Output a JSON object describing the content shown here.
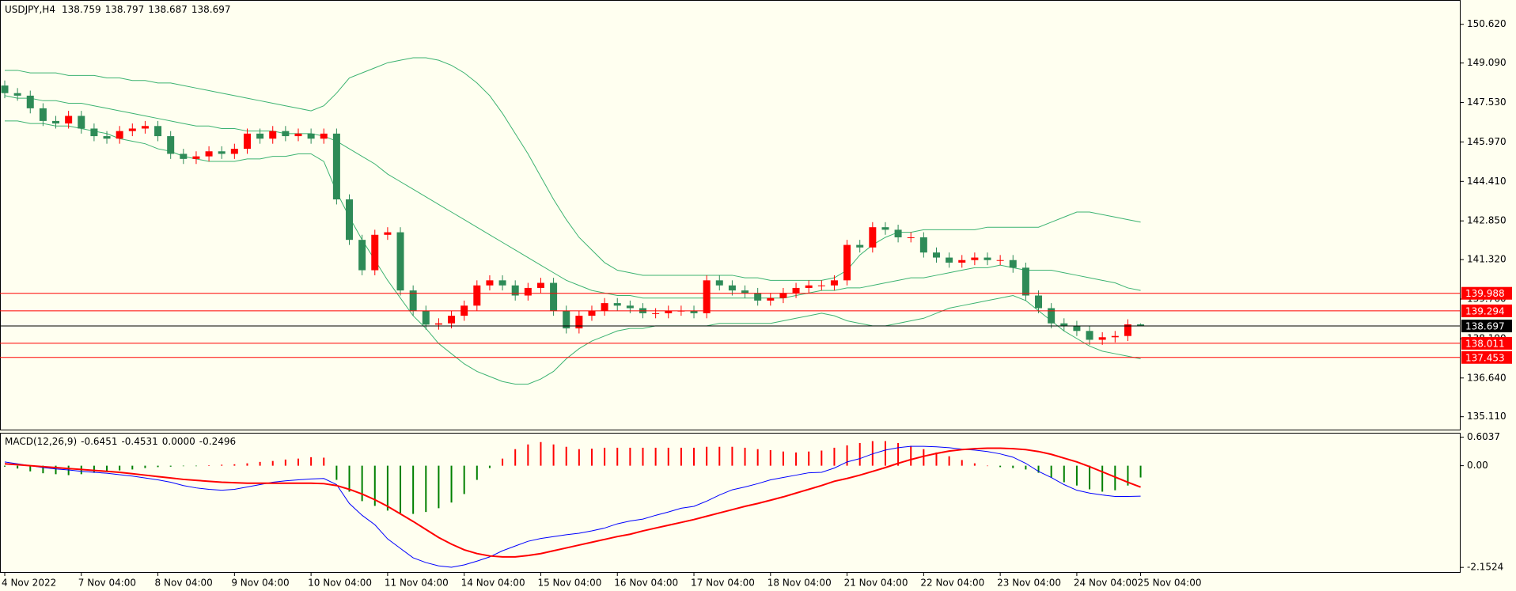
{
  "chart_data": [
    {
      "type": "candlestick",
      "title": "USDJPY,H4",
      "categories": [
        "4 Nov 2022",
        null,
        null,
        null,
        null,
        null,
        "7 Nov 04:00",
        null,
        null,
        null,
        null,
        null,
        "8 Nov 04:00",
        null,
        null,
        null,
        null,
        null,
        "9 Nov 04:00",
        null,
        null,
        null,
        null,
        null,
        "10 Nov 04:00",
        null,
        null,
        null,
        null,
        null,
        "11 Nov 04:00",
        null,
        null,
        null,
        null,
        null,
        "14 Nov 04:00",
        null,
        null,
        null,
        null,
        null,
        "15 Nov 04:00",
        null,
        null,
        null,
        null,
        null,
        "16 Nov 04:00",
        null,
        null,
        null,
        null,
        null,
        "17 Nov 04:00",
        null,
        null,
        null,
        null,
        null,
        "18 Nov 04:00",
        null,
        null,
        null,
        null,
        null,
        "21 Nov 04:00",
        null,
        null,
        null,
        null,
        null,
        "22 Nov 04:00",
        null,
        null,
        null,
        null,
        null,
        "23 Nov 04:00",
        null,
        null,
        null,
        null,
        null,
        "24 Nov 04:00",
        null,
        null,
        null,
        null,
        "25 Nov 04:00"
      ],
      "open": [
        148.2,
        147.9,
        147.8,
        147.3,
        146.8,
        146.7,
        147.0,
        146.5,
        146.2,
        146.1,
        146.4,
        146.5,
        146.6,
        146.2,
        145.5,
        145.3,
        145.4,
        145.6,
        145.5,
        145.7,
        146.3,
        146.1,
        146.4,
        146.2,
        146.3,
        146.1,
        146.3,
        143.7,
        142.1,
        140.9,
        142.3,
        142.4,
        140.1,
        139.3,
        138.75,
        138.8,
        139.1,
        139.5,
        140.3,
        140.5,
        140.3,
        139.9,
        140.2,
        140.4,
        139.3,
        138.6,
        139.1,
        139.3,
        139.6,
        139.5,
        139.4,
        139.2,
        139.2,
        139.3,
        139.3,
        139.2,
        140.5,
        140.3,
        140.1,
        140.0,
        139.7,
        139.8,
        140.0,
        140.2,
        140.3,
        140.3,
        140.5,
        141.9,
        141.8,
        142.6,
        142.5,
        142.2,
        142.2,
        141.6,
        141.4,
        141.2,
        141.3,
        141.4,
        141.3,
        141.3,
        141.0,
        139.9,
        139.4,
        138.8,
        138.7,
        138.5,
        138.15,
        138.25,
        138.3,
        138.759
      ],
      "high": [
        148.4,
        148.1,
        148.0,
        147.5,
        147.0,
        147.2,
        147.2,
        146.7,
        146.4,
        146.6,
        146.7,
        146.8,
        146.8,
        146.4,
        145.7,
        145.6,
        145.8,
        145.8,
        145.9,
        146.5,
        146.5,
        146.6,
        146.6,
        146.5,
        146.5,
        146.5,
        146.5,
        143.9,
        142.3,
        142.5,
        142.6,
        142.6,
        140.3,
        139.5,
        139.0,
        139.3,
        139.7,
        140.5,
        140.7,
        140.7,
        140.5,
        140.4,
        140.6,
        140.6,
        139.5,
        139.3,
        139.5,
        139.8,
        139.8,
        139.7,
        139.6,
        139.4,
        139.5,
        139.5,
        139.5,
        140.7,
        140.7,
        140.5,
        140.3,
        140.2,
        140.0,
        140.2,
        140.4,
        140.5,
        140.5,
        140.7,
        142.1,
        142.1,
        142.8,
        142.8,
        142.7,
        142.4,
        142.4,
        141.8,
        141.6,
        141.5,
        141.6,
        141.6,
        141.5,
        141.5,
        141.2,
        140.1,
        139.6,
        139.0,
        138.9,
        138.7,
        138.45,
        138.5,
        138.96,
        138.797
      ],
      "low": [
        147.7,
        147.6,
        147.1,
        146.6,
        146.5,
        146.5,
        146.3,
        146.0,
        145.9,
        145.9,
        146.2,
        146.3,
        146.0,
        145.3,
        145.1,
        145.1,
        145.2,
        145.3,
        145.3,
        145.5,
        145.9,
        145.9,
        146.0,
        146.0,
        145.9,
        145.9,
        143.5,
        141.9,
        140.7,
        140.7,
        142.1,
        139.9,
        139.1,
        138.55,
        138.55,
        138.6,
        138.9,
        139.3,
        140.1,
        140.1,
        139.7,
        139.7,
        140.0,
        139.1,
        138.4,
        138.4,
        138.9,
        139.1,
        139.3,
        139.2,
        139.0,
        139.0,
        139.0,
        139.1,
        139.0,
        139.0,
        140.1,
        139.9,
        139.8,
        139.5,
        139.5,
        139.6,
        139.8,
        140.0,
        140.1,
        140.1,
        140.3,
        141.6,
        141.6,
        142.3,
        142.0,
        142.0,
        141.4,
        141.2,
        141.0,
        141.0,
        141.1,
        141.1,
        141.1,
        140.8,
        139.7,
        139.2,
        138.6,
        138.5,
        138.3,
        137.95,
        137.95,
        138.05,
        138.1,
        138.687
      ],
      "close": [
        147.9,
        147.8,
        147.3,
        146.8,
        146.7,
        147.0,
        146.5,
        146.2,
        146.1,
        146.4,
        146.5,
        146.6,
        146.2,
        145.5,
        145.3,
        145.4,
        145.6,
        145.5,
        145.7,
        146.3,
        146.1,
        146.4,
        146.2,
        146.3,
        146.1,
        146.3,
        143.7,
        142.1,
        140.9,
        142.3,
        142.4,
        140.1,
        139.3,
        138.75,
        138.8,
        139.1,
        139.5,
        140.3,
        140.5,
        140.3,
        139.9,
        140.2,
        140.4,
        139.3,
        138.6,
        139.1,
        139.3,
        139.6,
        139.5,
        139.4,
        139.2,
        139.2,
        139.3,
        139.3,
        139.2,
        140.5,
        140.3,
        140.1,
        140.0,
        139.7,
        139.8,
        140.0,
        140.2,
        140.3,
        140.3,
        140.5,
        141.9,
        141.8,
        142.6,
        142.5,
        142.2,
        142.2,
        141.6,
        141.4,
        141.2,
        141.3,
        141.4,
        141.3,
        141.3,
        141.0,
        139.9,
        139.4,
        138.8,
        138.7,
        138.5,
        138.15,
        138.25,
        138.3,
        138.759,
        138.697
      ],
      "up_color": "#ff0000",
      "down_color": "#2e8b57",
      "lines": [
        {
          "color": "#3cb371",
          "values": [
            148.8,
            148.8,
            148.7,
            148.7,
            148.7,
            148.6,
            148.6,
            148.6,
            148.5,
            148.5,
            148.4,
            148.4,
            148.3,
            148.3,
            148.2,
            148.1,
            148.0,
            147.9,
            147.8,
            147.7,
            147.6,
            147.5,
            147.4,
            147.3,
            147.2,
            147.4,
            147.9,
            148.5,
            148.7,
            148.9,
            149.1,
            149.2,
            149.3,
            149.3,
            149.2,
            149.0,
            148.7,
            148.3,
            147.8,
            147.1,
            146.3,
            145.5,
            144.6,
            143.7,
            142.9,
            142.2,
            141.7,
            141.2,
            140.9,
            140.8,
            140.7,
            140.7,
            140.7,
            140.7,
            140.7,
            140.7,
            140.7,
            140.7,
            140.6,
            140.6,
            140.5,
            140.5,
            140.5,
            140.5,
            140.5,
            140.6,
            140.9,
            141.5,
            141.9,
            142.2,
            142.4,
            142.4,
            142.5,
            142.5,
            142.5,
            142.5,
            142.5,
            142.6,
            142.6,
            142.6,
            142.6,
            142.6,
            142.8,
            143.0,
            143.2,
            143.2,
            143.1,
            143.0,
            142.9,
            142.8
          ]
        },
        {
          "color": "#3cb371",
          "values": [
            147.8,
            147.7,
            147.7,
            147.6,
            147.6,
            147.5,
            147.5,
            147.4,
            147.3,
            147.2,
            147.1,
            147.0,
            146.9,
            146.8,
            146.7,
            146.6,
            146.6,
            146.5,
            146.5,
            146.4,
            146.4,
            146.4,
            146.3,
            146.3,
            146.3,
            146.2,
            146.0,
            145.7,
            145.4,
            145.1,
            144.7,
            144.4,
            144.1,
            143.8,
            143.5,
            143.2,
            142.9,
            142.6,
            142.3,
            142.0,
            141.7,
            141.4,
            141.1,
            140.8,
            140.5,
            140.3,
            140.1,
            140.0,
            139.9,
            139.9,
            139.8,
            139.8,
            139.8,
            139.8,
            139.8,
            139.8,
            139.8,
            139.8,
            139.8,
            139.8,
            139.8,
            139.8,
            139.9,
            140.0,
            140.1,
            140.1,
            140.2,
            140.2,
            140.3,
            140.4,
            140.5,
            140.6,
            140.6,
            140.7,
            140.8,
            140.9,
            141.0,
            141.0,
            141.1,
            141.0,
            140.9,
            140.9,
            140.9,
            140.8,
            140.7,
            140.6,
            140.5,
            140.4,
            140.2,
            140.1
          ]
        },
        {
          "color": "#3cb371",
          "values": [
            146.8,
            146.8,
            146.7,
            146.7,
            146.6,
            146.6,
            146.5,
            146.4,
            146.3,
            146.1,
            146.0,
            145.9,
            145.7,
            145.6,
            145.4,
            145.3,
            145.2,
            145.2,
            145.2,
            145.3,
            145.3,
            145.4,
            145.4,
            145.5,
            145.5,
            145.2,
            144.0,
            143.0,
            142.1,
            141.3,
            140.5,
            139.8,
            139.1,
            138.6,
            138.0,
            137.6,
            137.2,
            136.9,
            136.7,
            136.5,
            136.4,
            136.4,
            136.6,
            136.9,
            137.4,
            137.8,
            138.1,
            138.3,
            138.5,
            138.6,
            138.6,
            138.7,
            138.7,
            138.7,
            138.7,
            138.7,
            138.8,
            138.8,
            138.8,
            138.8,
            138.8,
            138.9,
            139.0,
            139.1,
            139.2,
            139.1,
            138.9,
            138.8,
            138.7,
            138.7,
            138.8,
            138.9,
            139.0,
            139.2,
            139.4,
            139.5,
            139.6,
            139.7,
            139.8,
            139.9,
            139.7,
            139.3,
            138.9,
            138.5,
            138.2,
            137.9,
            137.7,
            137.6,
            137.5,
            137.4
          ]
        }
      ],
      "hlines": [
        139.988,
        139.294,
        138.011,
        137.453
      ],
      "hline_color": "#ff0000",
      "price_line_color": "#000000",
      "ylim": [
        134.6,
        151.55
      ],
      "yticks": [
        {
          "value": 150.62,
          "label": "150.620"
        },
        {
          "value": 149.09,
          "label": "149.090"
        },
        {
          "value": 147.53,
          "label": "147.530"
        },
        {
          "value": 145.97,
          "label": "145.970"
        },
        {
          "value": 144.41,
          "label": "144.410"
        },
        {
          "value": 142.85,
          "label": "142.850"
        },
        {
          "value": 141.32,
          "label": "141.320"
        },
        {
          "value": 139.76,
          "label": "139.760"
        },
        {
          "value": 138.19,
          "label": "138.190"
        },
        {
          "value": 136.64,
          "label": "136.640"
        },
        {
          "value": 135.11,
          "label": "135.110"
        }
      ]
    },
    {
      "type": "bar",
      "title": "MACD(12,26,9)",
      "values": [
        -0.02,
        -0.06,
        -0.12,
        -0.16,
        -0.18,
        -0.2,
        -0.18,
        -0.15,
        -0.12,
        -0.1,
        -0.08,
        -0.05,
        -0.03,
        -0.02,
        -0.01,
        -0.01,
        0.01,
        0.02,
        0.03,
        0.05,
        0.08,
        0.1,
        0.13,
        0.15,
        0.18,
        0.17,
        -0.3,
        -0.55,
        -0.75,
        -0.85,
        -0.95,
        -1.0,
        -1.02,
        -0.98,
        -0.9,
        -0.78,
        -0.6,
        -0.3,
        -0.05,
        0.15,
        0.35,
        0.45,
        0.5,
        0.45,
        0.4,
        0.35,
        0.36,
        0.38,
        0.38,
        0.38,
        0.38,
        0.38,
        0.38,
        0.38,
        0.38,
        0.4,
        0.4,
        0.4,
        0.38,
        0.35,
        0.33,
        0.3,
        0.28,
        0.3,
        0.32,
        0.38,
        0.43,
        0.48,
        0.52,
        0.52,
        0.48,
        0.42,
        0.35,
        0.28,
        0.2,
        0.12,
        0.05,
        0.0,
        -0.03,
        -0.05,
        -0.08,
        -0.15,
        -0.25,
        -0.35,
        -0.42,
        -0.5,
        -0.55,
        -0.52,
        -0.42,
        -0.2496
      ],
      "positive_color": "#ff0000",
      "negative_color": "#008000",
      "lines": [
        {
          "color": "#0000ff",
          "values": [
            0.08,
            0.04,
            0.0,
            -0.04,
            -0.07,
            -0.09,
            -0.12,
            -0.14,
            -0.16,
            -0.19,
            -0.22,
            -0.26,
            -0.3,
            -0.35,
            -0.42,
            -0.47,
            -0.5,
            -0.52,
            -0.5,
            -0.45,
            -0.4,
            -0.35,
            -0.32,
            -0.3,
            -0.28,
            -0.27,
            -0.4,
            -0.8,
            -1.05,
            -1.25,
            -1.55,
            -1.75,
            -1.95,
            -2.05,
            -2.12,
            -2.15,
            -2.1,
            -2.02,
            -1.93,
            -1.8,
            -1.7,
            -1.6,
            -1.54,
            -1.5,
            -1.46,
            -1.43,
            -1.38,
            -1.32,
            -1.23,
            -1.17,
            -1.13,
            -1.05,
            -0.98,
            -0.9,
            -0.86,
            -0.75,
            -0.62,
            -0.51,
            -0.45,
            -0.38,
            -0.3,
            -0.25,
            -0.2,
            -0.15,
            -0.14,
            -0.05,
            0.08,
            0.15,
            0.25,
            0.33,
            0.38,
            0.41,
            0.41,
            0.4,
            0.38,
            0.35,
            0.33,
            0.3,
            0.25,
            0.18,
            0.05,
            -0.12,
            -0.25,
            -0.4,
            -0.52,
            -0.58,
            -0.62,
            -0.65,
            -0.65,
            -0.6451
          ]
        },
        {
          "color": "#ff0000",
          "values": [
            0.04,
            0.02,
            0.0,
            -0.02,
            -0.04,
            -0.06,
            -0.08,
            -0.1,
            -0.12,
            -0.14,
            -0.17,
            -0.2,
            -0.23,
            -0.26,
            -0.29,
            -0.31,
            -0.33,
            -0.35,
            -0.36,
            -0.37,
            -0.37,
            -0.37,
            -0.37,
            -0.37,
            -0.37,
            -0.38,
            -0.42,
            -0.5,
            -0.6,
            -0.72,
            -0.86,
            -1.02,
            -1.18,
            -1.35,
            -1.52,
            -1.66,
            -1.78,
            -1.86,
            -1.91,
            -1.93,
            -1.93,
            -1.9,
            -1.86,
            -1.8,
            -1.74,
            -1.68,
            -1.62,
            -1.56,
            -1.5,
            -1.45,
            -1.38,
            -1.32,
            -1.26,
            -1.2,
            -1.14,
            -1.07,
            -1.0,
            -0.93,
            -0.86,
            -0.8,
            -0.73,
            -0.66,
            -0.58,
            -0.5,
            -0.42,
            -0.33,
            -0.27,
            -0.2,
            -0.12,
            -0.04,
            0.05,
            0.13,
            0.2,
            0.26,
            0.31,
            0.34,
            0.36,
            0.37,
            0.37,
            0.36,
            0.34,
            0.3,
            0.24,
            0.16,
            0.08,
            -0.02,
            -0.13,
            -0.24,
            -0.35,
            -0.4531
          ]
        }
      ],
      "empty_buffer": {
        "value": 0,
        "label": "0.0000"
      },
      "ylim": [
        -2.25,
        0.68
      ],
      "yticks": [
        0.6037,
        {
          "value": 0,
          "label": "0.00"
        },
        -2.1524
      ]
    }
  ]
}
